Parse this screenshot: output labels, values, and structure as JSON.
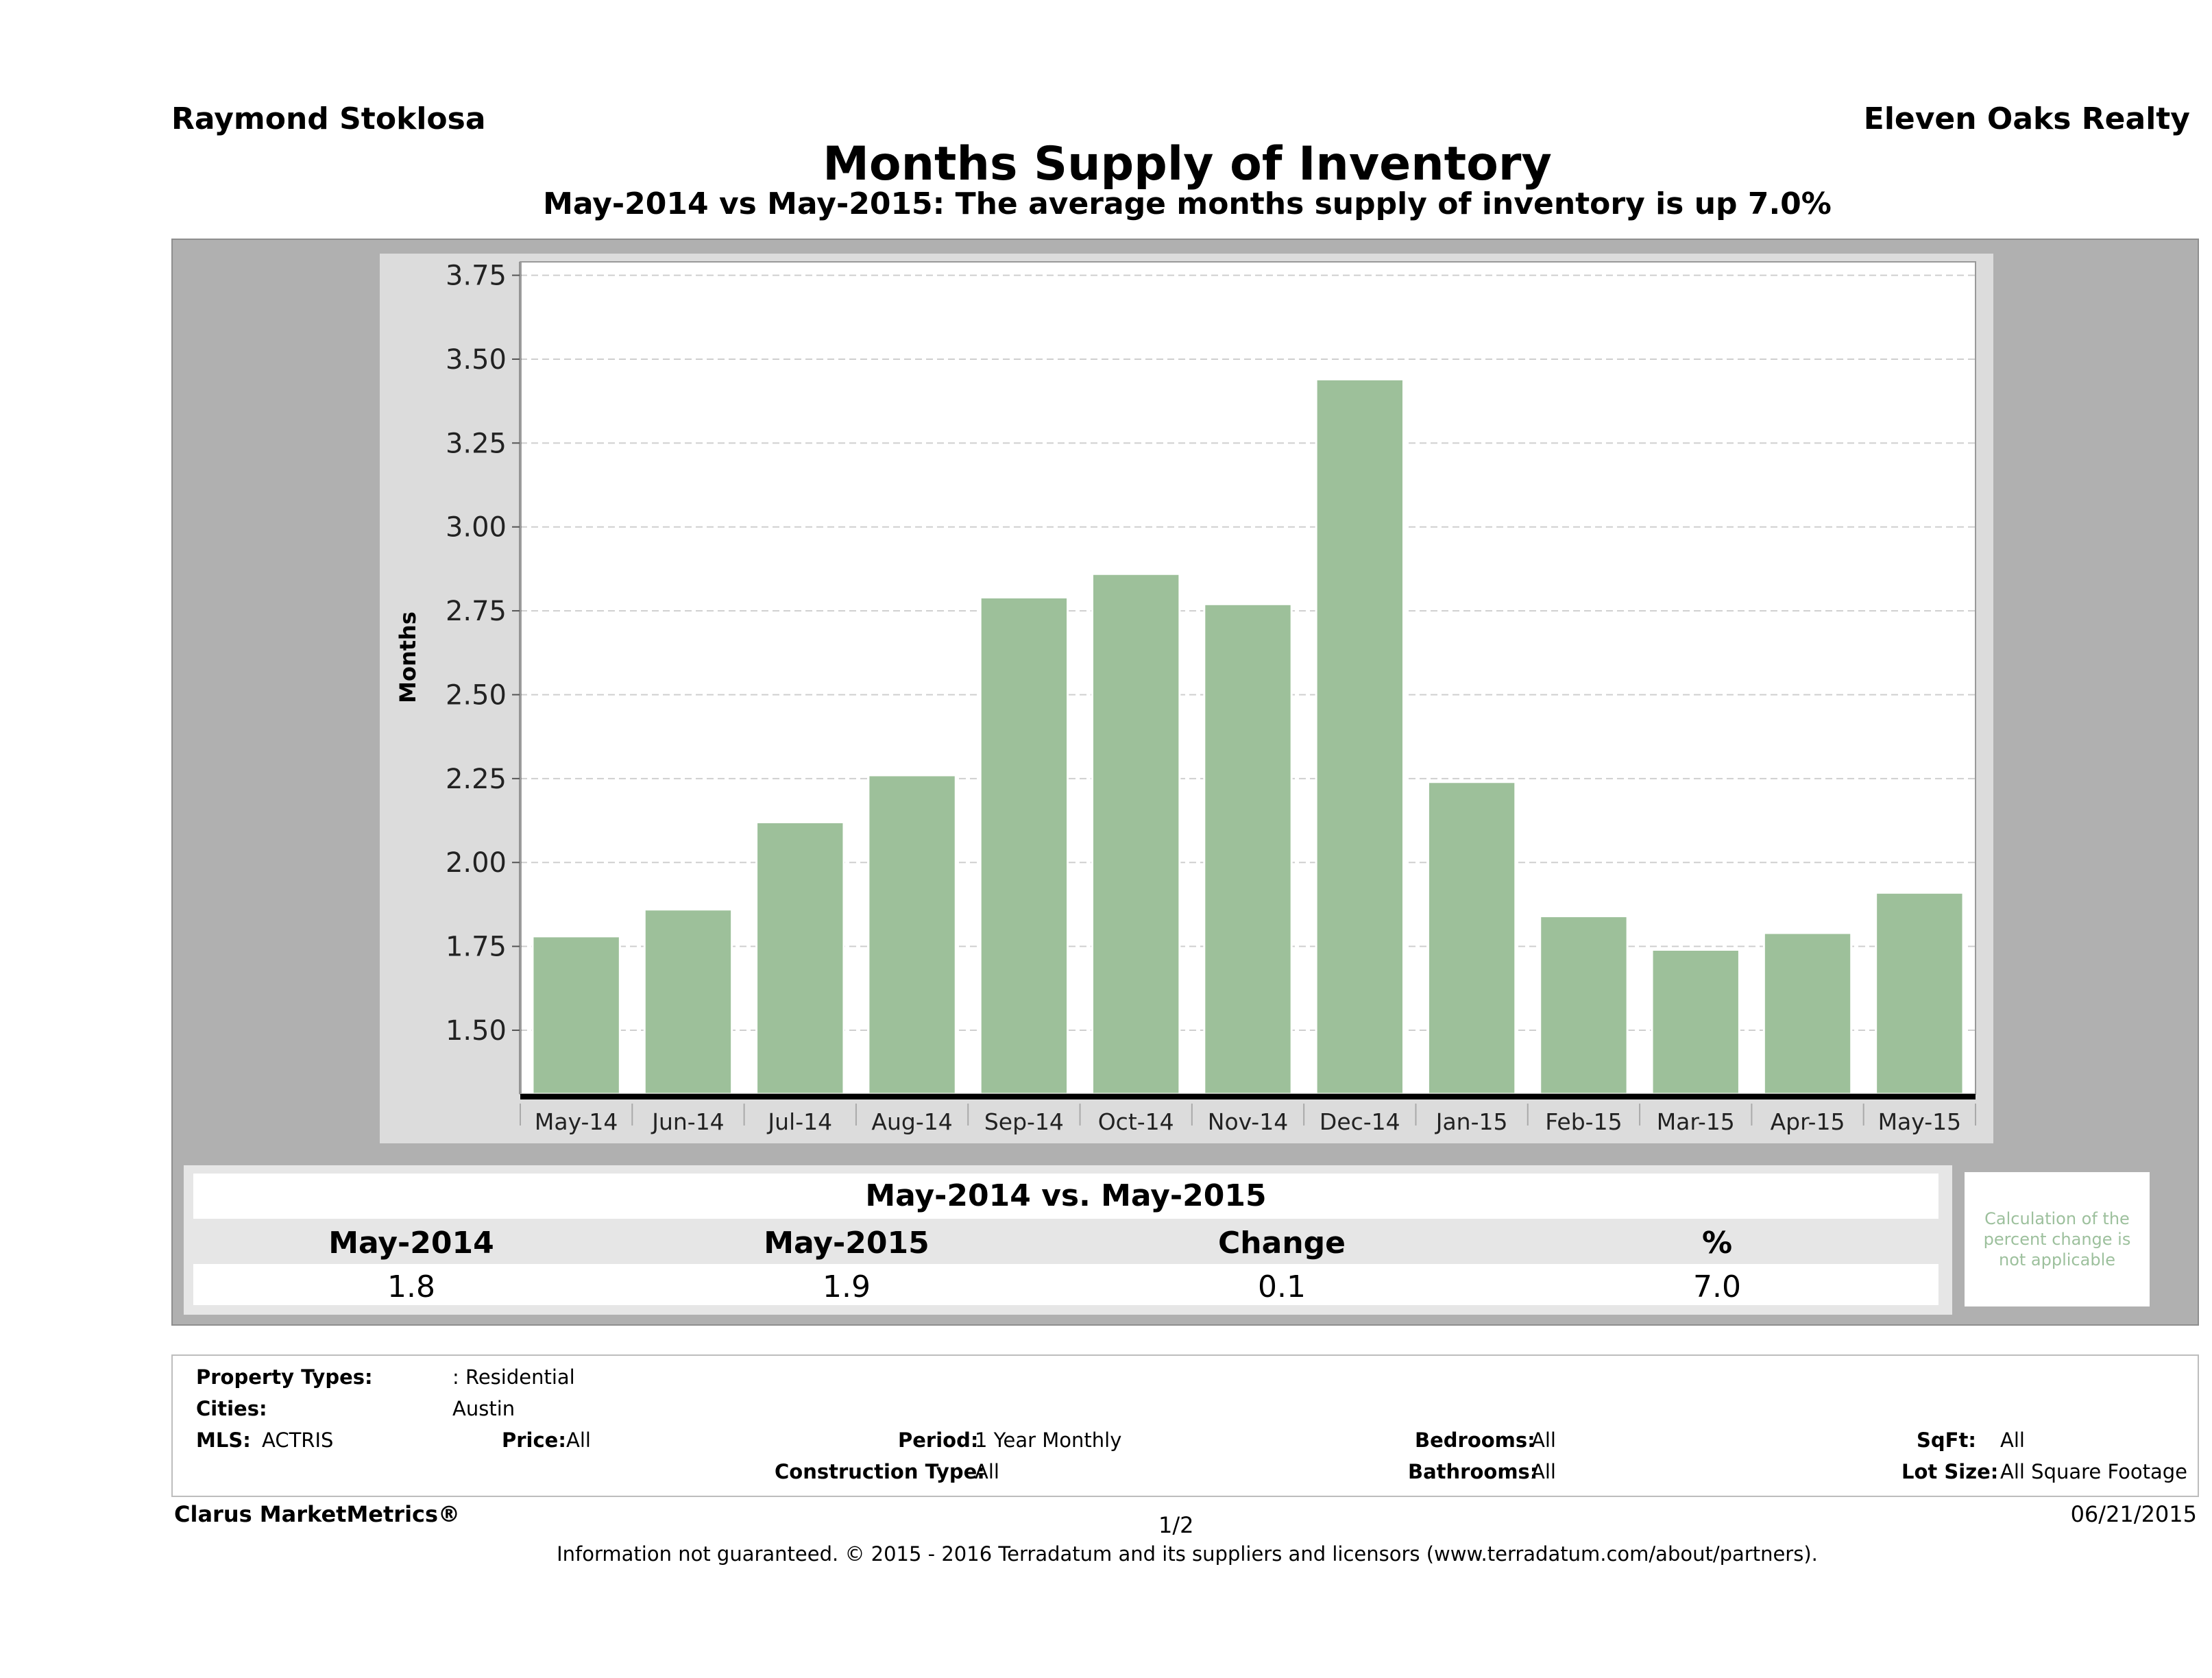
{
  "header": {
    "agent": "Raymond Stoklosa",
    "company": "Eleven Oaks Realty",
    "title": "Months Supply of Inventory",
    "subtitle": "May-2014 vs May-2015: The average months supply of inventory is up 7.0%"
  },
  "chart_data": {
    "type": "bar",
    "categories": [
      "May-14",
      "Jun-14",
      "Jul-14",
      "Aug-14",
      "Sep-14",
      "Oct-14",
      "Nov-14",
      "Dec-14",
      "Jan-15",
      "Feb-15",
      "Mar-15",
      "Apr-15",
      "May-15"
    ],
    "values": [
      1.78,
      1.86,
      2.12,
      2.26,
      2.79,
      2.86,
      2.77,
      3.44,
      2.24,
      1.84,
      1.74,
      1.79,
      1.91
    ],
    "ylabel": "Months",
    "xlabel": "",
    "ylim": [
      1.31,
      3.79
    ],
    "yticks": [
      "1.50",
      "1.75",
      "2.00",
      "2.25",
      "2.50",
      "2.75",
      "3.00",
      "3.25",
      "3.50",
      "3.75"
    ],
    "grid": true,
    "bar_color": "#9dc09a"
  },
  "comparison": {
    "heading": "May-2014 vs. May-2015",
    "columns": [
      "May-2014",
      "May-2015",
      "Change",
      "%"
    ],
    "values": [
      "1.8",
      "1.9",
      "0.1",
      "7.0"
    ],
    "note": "Calculation of the percent change is not applicable"
  },
  "filters": {
    "property_types_label": "Property Types:",
    "property_types_value": ": Residential",
    "cities_label": "Cities:",
    "cities_value": "Austin",
    "mls_label": "MLS:",
    "mls_value": "ACTRIS",
    "price_label": "Price:",
    "price_value": "All",
    "period_label": "Period:",
    "period_value": "1 Year Monthly",
    "construction_label": "Construction Type:",
    "construction_value": "All",
    "bedrooms_label": "Bedrooms:",
    "bedrooms_value": "All",
    "bathrooms_label": "Bathrooms:",
    "bathrooms_value": "All",
    "sqft_label": "SqFt:",
    "sqft_value": "All",
    "lotsize_label": "Lot Size:",
    "lotsize_value": "All Square Footage"
  },
  "footer": {
    "brand": "Clarus MarketMetrics®",
    "page": "1/2",
    "date": "06/21/2015",
    "disclaimer": "Information not guaranteed. © 2015 - 2016 Terradatum and its suppliers and licensors (www.terradatum.com/about/partners)."
  }
}
